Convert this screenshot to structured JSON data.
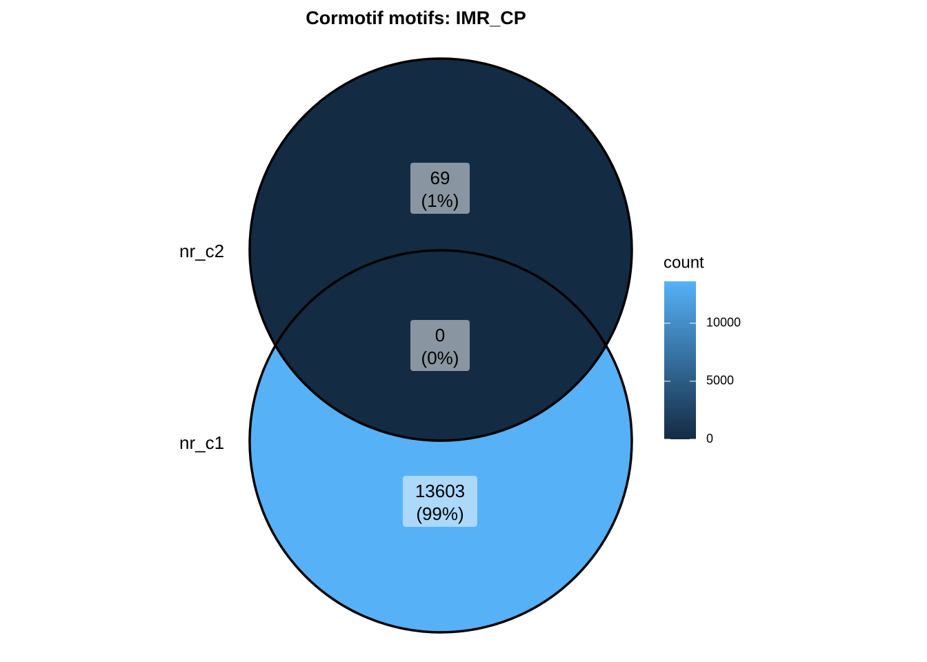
{
  "chart_data": {
    "type": "venn",
    "title": "Cormotif motifs: IMR_CP",
    "sets": [
      "nr_c1",
      "nr_c2"
    ],
    "regions": [
      "nr_c2",
      "nr_c1..nr_c2",
      "nr_c1"
    ],
    "values": [
      69,
      0,
      13603
    ],
    "percents": [
      1,
      0,
      99
    ],
    "percent_labels": [
      "(1%)",
      "(0%)",
      "(99%)"
    ],
    "legend_title": "count",
    "clim": [
      0,
      13603
    ],
    "cticks": [
      0,
      5000,
      10000
    ],
    "color_low": "#132B43",
    "color_high": "#56B1F7"
  }
}
